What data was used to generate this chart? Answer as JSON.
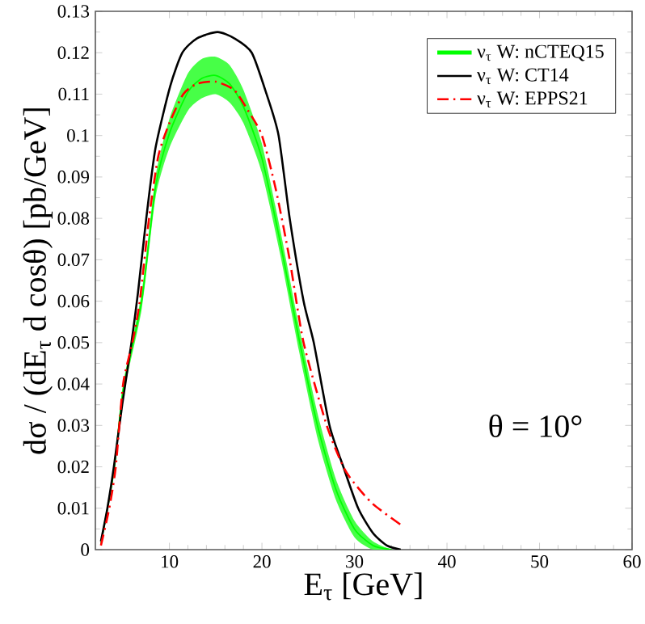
{
  "chart_data": {
    "type": "line",
    "xlabel": "E$_{τ}$ [GeV]",
    "ylabel": "dσ / (dE$_{τ}$ d cosθ) [pb/GeV]",
    "xlim": [
      2,
      60
    ],
    "xticks": [
      10,
      20,
      30,
      40,
      50,
      60
    ],
    "ylim": [
      0,
      0.13
    ],
    "yticks": [
      0,
      0.01,
      0.02,
      0.03,
      0.04,
      0.05,
      0.06,
      0.07,
      0.08,
      0.09,
      0.1,
      0.11,
      0.12,
      0.13
    ],
    "legend": "top right",
    "annotations": [
      "θ = 10°"
    ],
    "series": [
      {
        "name": "ν$_{τ}$ W: nCTEQ15",
        "color": "#00ff00",
        "line_style": "solid",
        "x": [
          2.6,
          4,
          5,
          7,
          8.5,
          10,
          12,
          13.5,
          15,
          16.5,
          18,
          20,
          22,
          24,
          26,
          28,
          30,
          32,
          34
        ],
        "values": [
          0.0015,
          0.019,
          0.0385,
          0.06,
          0.0875,
          0.1005,
          0.1105,
          0.1138,
          0.1145,
          0.1125,
          0.107,
          0.0945,
          0.074,
          0.051,
          0.03,
          0.0145,
          0.005,
          0.001,
          0.0
        ],
        "lower": [
          0.001,
          0.018,
          0.037,
          0.058,
          0.085,
          0.097,
          0.106,
          0.109,
          0.11,
          0.108,
          0.103,
          0.091,
          0.071,
          0.048,
          0.027,
          0.012,
          0.003,
          0.0,
          0.0
        ],
        "upper": [
          0.002,
          0.02,
          0.04,
          0.062,
          0.09,
          0.104,
          0.115,
          0.1185,
          0.119,
          0.117,
          0.111,
          0.098,
          0.077,
          0.054,
          0.033,
          0.017,
          0.007,
          0.002,
          0.0
        ]
      },
      {
        "name": "ν$_{τ}$ W: CT14",
        "color": "#000000",
        "line_style": "solid",
        "x": [
          2.6,
          3.3,
          4,
          4.9,
          5.9,
          6.6,
          7.5,
          8.5,
          10.1,
          11.4,
          13,
          15.2,
          17,
          18.9,
          20.5,
          21.8,
          23,
          24.5,
          25.6,
          27.3,
          28.8,
          30.4,
          32,
          33.5,
          35
        ],
        "values": [
          0.002,
          0.01,
          0.02,
          0.035,
          0.05,
          0.062,
          0.08,
          0.097,
          0.112,
          0.12,
          0.1235,
          0.125,
          0.1235,
          0.12,
          0.11,
          0.1,
          0.08,
          0.06,
          0.05,
          0.03,
          0.02,
          0.01,
          0.004,
          0.001,
          0.0
        ]
      },
      {
        "name": "ν$_{τ}$ W: EPPS21",
        "color": "#ff0000",
        "line_style": "dashed",
        "x": [
          2.6,
          3.5,
          4.2,
          5,
          6,
          6.8,
          7.8,
          8.8,
          10,
          11.5,
          13,
          15,
          17,
          18.5,
          20,
          21.5,
          23,
          24.5,
          27,
          28.8,
          30,
          32,
          35
        ],
        "values": [
          0.001,
          0.01,
          0.02,
          0.04,
          0.05,
          0.06,
          0.08,
          0.095,
          0.103,
          0.11,
          0.1125,
          0.113,
          0.111,
          0.106,
          0.1,
          0.087,
          0.07,
          0.05,
          0.03,
          0.02,
          0.016,
          0.011,
          0.006
        ]
      }
    ]
  }
}
